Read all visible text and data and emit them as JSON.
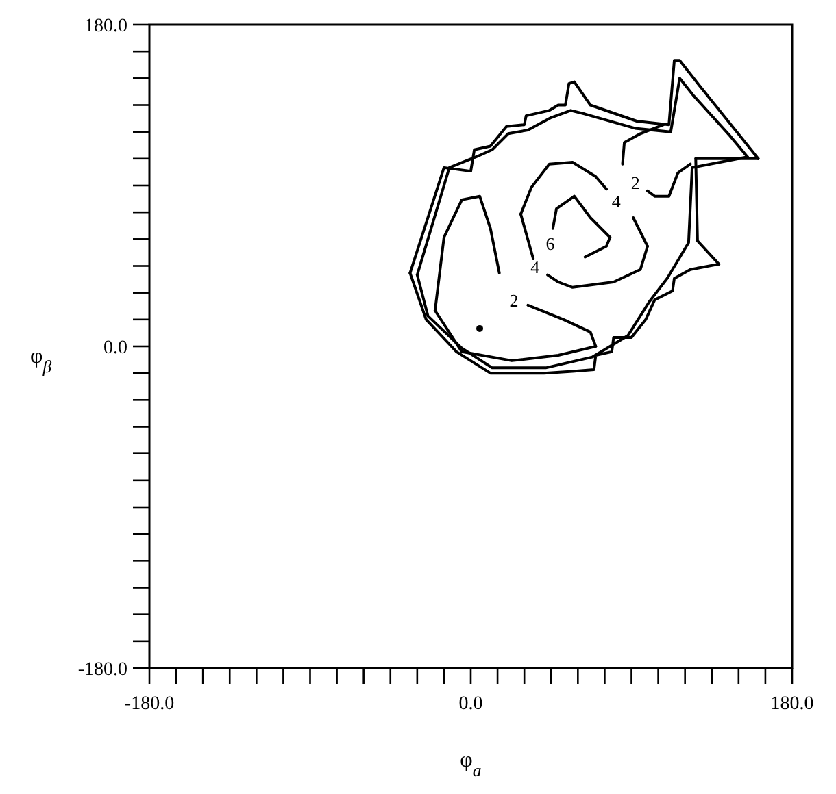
{
  "chart_data": {
    "type": "line",
    "xlabel": "φ$_{a}$",
    "ylabel": "φ$_{β}$",
    "xlim": [
      -180,
      180
    ],
    "ylim": [
      -180,
      180
    ],
    "xticks": [
      {
        "value": -180,
        "label": "-180.0"
      },
      {
        "value": -165,
        "label": null
      },
      {
        "value": -150,
        "label": null
      },
      {
        "value": -135,
        "label": null
      },
      {
        "value": -120,
        "label": null
      },
      {
        "value": -105,
        "label": null
      },
      {
        "value": -90,
        "label": null
      },
      {
        "value": -75,
        "label": null
      },
      {
        "value": -60,
        "label": null
      },
      {
        "value": -45,
        "label": null
      },
      {
        "value": -30,
        "label": null
      },
      {
        "value": -15,
        "label": null
      },
      {
        "value": 0,
        "label": "0.0"
      },
      {
        "value": 15,
        "label": null
      },
      {
        "value": 30,
        "label": null
      },
      {
        "value": 45,
        "label": null
      },
      {
        "value": 60,
        "label": null
      },
      {
        "value": 75,
        "label": null
      },
      {
        "value": 90,
        "label": null
      },
      {
        "value": 105,
        "label": null
      },
      {
        "value": 120,
        "label": null
      },
      {
        "value": 135,
        "label": null
      },
      {
        "value": 150,
        "label": null
      },
      {
        "value": 165,
        "label": null
      },
      {
        "value": 180,
        "label": "180.0"
      }
    ],
    "yticks": [
      {
        "value": -180,
        "label": "-180.0"
      },
      {
        "value": -165,
        "label": null
      },
      {
        "value": -150,
        "label": null
      },
      {
        "value": -135,
        "label": null
      },
      {
        "value": -120,
        "label": null
      },
      {
        "value": -105,
        "label": null
      },
      {
        "value": -90,
        "label": null
      },
      {
        "value": -75,
        "label": null
      },
      {
        "value": -60,
        "label": null
      },
      {
        "value": -45,
        "label": null
      },
      {
        "value": -30,
        "label": null
      },
      {
        "value": -15,
        "label": null
      },
      {
        "value": 0,
        "label": "0.0"
      },
      {
        "value": 15,
        "label": null
      },
      {
        "value": 30,
        "label": null
      },
      {
        "value": 45,
        "label": null
      },
      {
        "value": 60,
        "label": null
      },
      {
        "value": 75,
        "label": null
      },
      {
        "value": 90,
        "label": null
      },
      {
        "value": 105,
        "label": null
      },
      {
        "value": 120,
        "label": null
      },
      {
        "value": 135,
        "label": null
      },
      {
        "value": 150,
        "label": null
      },
      {
        "value": 165,
        "label": null
      },
      {
        "value": 180,
        "label": "180.0"
      }
    ],
    "series": [
      {
        "color": "#000000",
        "x": [
          -34,
          -15,
          0,
          2,
          11,
          20,
          30,
          31,
          44,
          49,
          53,
          55,
          58,
          67,
          93,
          111,
          114,
          117,
          128,
          149,
          161
        ],
        "values": [
          41,
          100,
          98,
          110,
          112,
          123,
          124,
          129,
          132,
          135,
          135,
          147,
          148,
          135,
          126,
          124,
          160,
          160,
          146,
          120,
          105
        ]
      },
      {
        "color": "#000000",
        "x": [
          161,
          126
        ],
        "values": [
          105,
          105
        ]
      },
      {
        "color": "#000000",
        "x": [
          126,
          127,
          139
        ],
        "values": [
          105,
          59,
          46
        ]
      },
      {
        "color": "#000000",
        "x": [
          139,
          123,
          114,
          113,
          103,
          98,
          90,
          80,
          79,
          70,
          69,
          57,
          41,
          11,
          -8,
          -25,
          -34
        ],
        "values": [
          46,
          43,
          38,
          31,
          26,
          15,
          5,
          5,
          -3,
          -5,
          -13,
          -14,
          -15,
          -15,
          -3,
          15,
          41
        ]
      },
      {
        "color": "#000000",
        "x": [
          -30,
          -12,
          3,
          12,
          21,
          32,
          45,
          56,
          64,
          92,
          112,
          117,
          125,
          145,
          155
        ],
        "values": [
          40,
          100,
          106,
          110,
          119,
          121,
          128,
          132,
          130,
          122,
          120,
          150,
          140,
          118,
          106
        ]
      },
      {
        "color": "#000000",
        "x": [
          155,
          124,
          122,
          110,
          100,
          88,
          68,
          42,
          12,
          -5,
          -24,
          -30
        ],
        "values": [
          106,
          100,
          58,
          38,
          25,
          6,
          -6,
          -12,
          -12,
          -1,
          17,
          40
        ]
      },
      {
        "name": "2",
        "color": "#000000",
        "x": [
          32,
          52,
          67,
          70
        ],
        "values": [
          23,
          15,
          8,
          0
        ]
      },
      {
        "color": "#000000",
        "x": [
          70,
          49,
          23,
          -5,
          -20
        ],
        "values": [
          0,
          -5,
          -8,
          -3,
          20
        ]
      },
      {
        "color": "#000000",
        "x": [
          -20,
          -15,
          -5,
          5,
          11,
          16
        ],
        "values": [
          20,
          61,
          82,
          84,
          66,
          41
        ]
      },
      {
        "name": "2",
        "color": "#000000",
        "x": [
          99,
          103,
          111,
          116,
          123
        ],
        "values": [
          87,
          84,
          84,
          97,
          102
        ]
      },
      {
        "color": "#000000",
        "x": [
          85,
          86,
          95,
          108
        ],
        "values": [
          102,
          114,
          119,
          124
        ]
      },
      {
        "name": "4",
        "color": "#000000",
        "x": [
          76,
          70,
          57,
          44,
          34,
          28
        ],
        "values": [
          88,
          95,
          103,
          102,
          89,
          74
        ]
      },
      {
        "color": "#000000",
        "x": [
          28,
          35
        ],
        "values": [
          74,
          49
        ]
      },
      {
        "name": "4",
        "color": "#000000",
        "x": [
          43,
          49,
          57,
          80,
          95,
          99
        ],
        "values": [
          40,
          36,
          33,
          36,
          43,
          56
        ]
      },
      {
        "color": "#000000",
        "x": [
          99,
          91
        ],
        "values": [
          56,
          72
        ]
      },
      {
        "name": "6",
        "color": "#000000",
        "x": [
          46,
          48,
          58,
          67,
          78
        ],
        "values": [
          66,
          77,
          84,
          72,
          61
        ]
      },
      {
        "color": "#000000",
        "x": [
          78,
          76,
          64
        ],
        "values": [
          61,
          56,
          50
        ]
      },
      {
        "type": "scatter",
        "color": "#000000",
        "x": [
          5
        ],
        "values": [
          10
        ]
      }
    ]
  }
}
